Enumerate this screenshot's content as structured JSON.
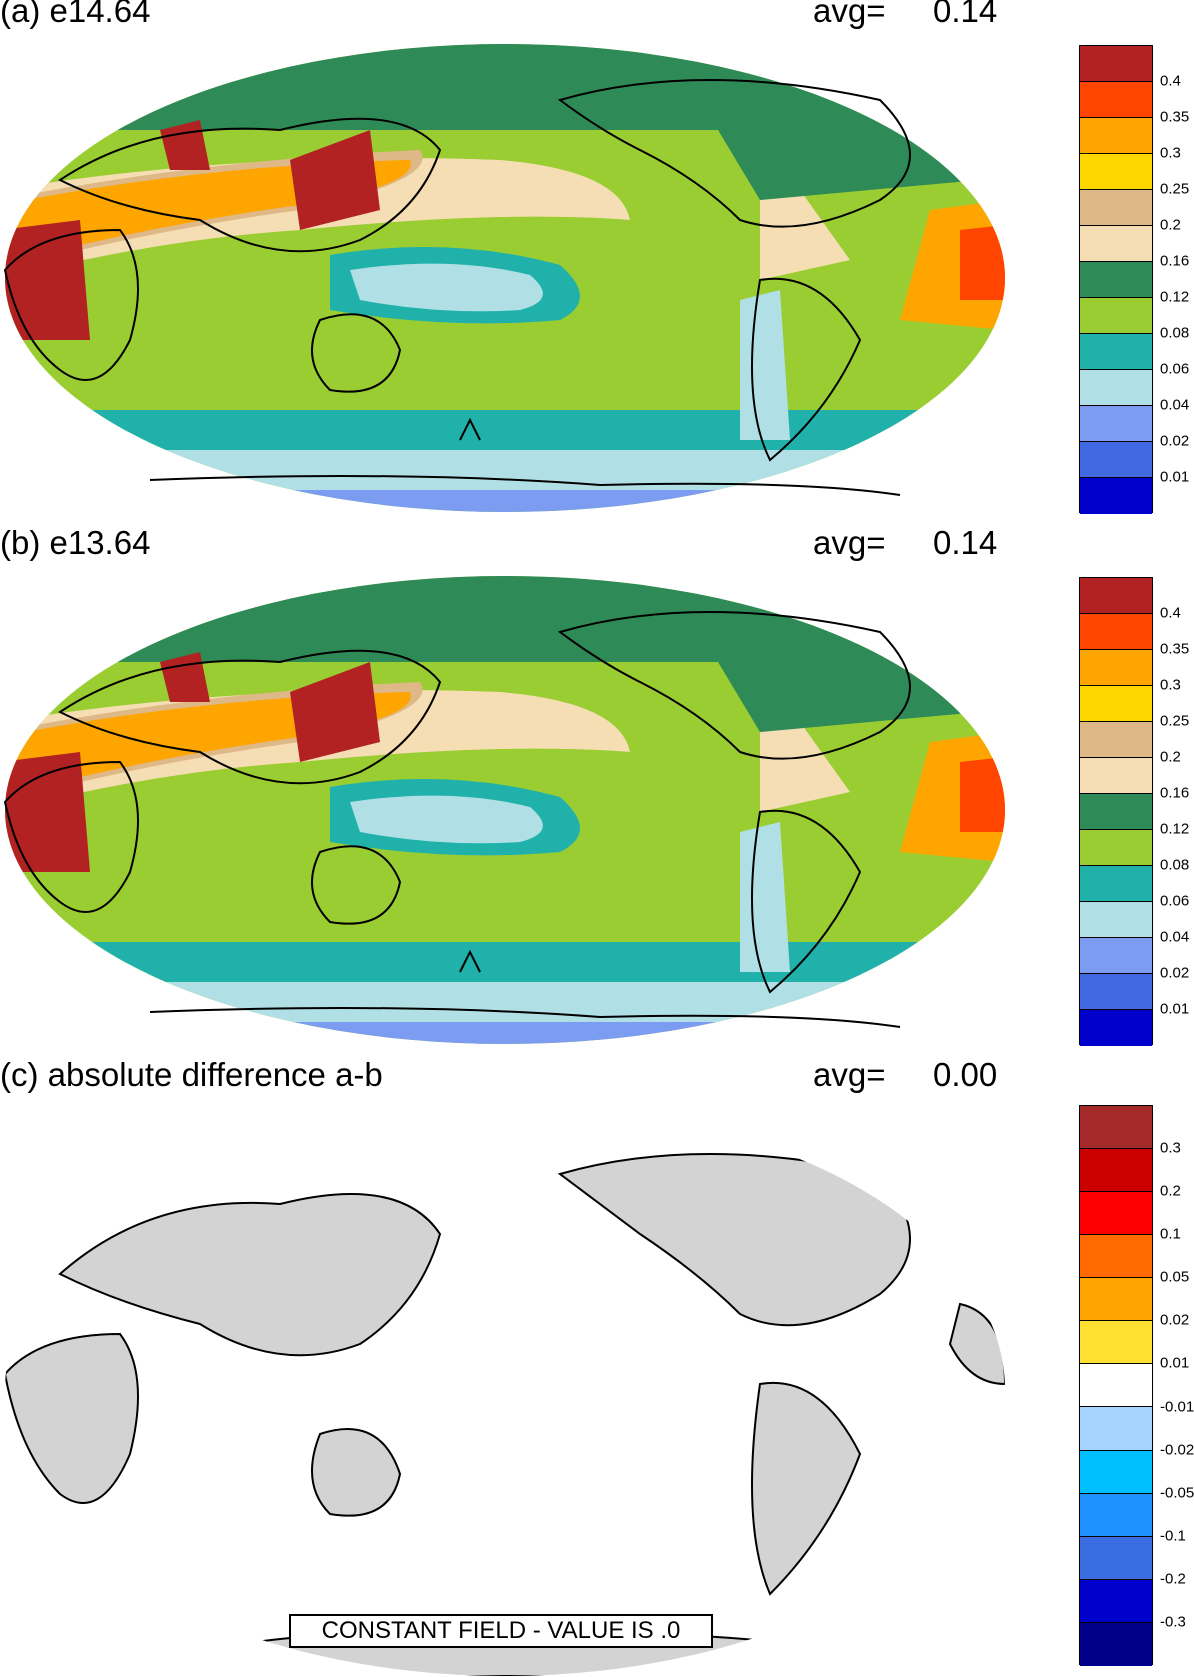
{
  "panels": [
    {
      "id": "a",
      "title": "(a) e14.64",
      "avg_label": "avg=",
      "avg_value": "0.14",
      "colorbar": {
        "labels": [
          "0.4",
          "0.35",
          "0.3",
          "0.25",
          "0.2",
          "0.16",
          "0.12",
          "0.08",
          "0.06",
          "0.04",
          "0.02",
          "0.01"
        ],
        "colors": [
          "#b22222",
          "#ff4500",
          "#ffa500",
          "#ffd700",
          "#deb887",
          "#f5deb3",
          "#2e8b57",
          "#9acd32",
          "#20b2aa",
          "#b0e0e6",
          "#7b9cf0",
          "#4169e1",
          "#0000cd"
        ]
      }
    },
    {
      "id": "b",
      "title": "(b) e13.64",
      "avg_label": "avg=",
      "avg_value": "0.14",
      "colorbar": {
        "labels": [
          "0.4",
          "0.35",
          "0.3",
          "0.25",
          "0.2",
          "0.16",
          "0.12",
          "0.08",
          "0.06",
          "0.04",
          "0.02",
          "0.01"
        ],
        "colors": [
          "#b22222",
          "#ff4500",
          "#ffa500",
          "#ffd700",
          "#deb887",
          "#f5deb3",
          "#2e8b57",
          "#9acd32",
          "#20b2aa",
          "#b0e0e6",
          "#7b9cf0",
          "#4169e1",
          "#0000cd"
        ]
      }
    },
    {
      "id": "c",
      "title": "(c) absolute difference a-b",
      "avg_label": "avg=",
      "avg_value": "0.00",
      "annotation": "CONSTANT FIELD - VALUE IS .0",
      "colorbar": {
        "labels": [
          "0.3",
          "0.2",
          "0.1",
          "0.05",
          "0.02",
          "0.01",
          "-0.01",
          "-0.02",
          "-0.05",
          "-0.1",
          "-0.2",
          "-0.3"
        ],
        "colors": [
          "#a52a2a",
          "#cd0000",
          "#ff0000",
          "#ff6a00",
          "#ffa500",
          "#ffe033",
          "#ffffff",
          "#a7d3ff",
          "#00bfff",
          "#1e90ff",
          "#3a6ee0",
          "#0000cd",
          "#00008b"
        ]
      }
    }
  ],
  "style": {
    "land_color_c": "#d3d3d3",
    "ocean_color_c": "#ffffff",
    "coastline_color": "#000000"
  }
}
